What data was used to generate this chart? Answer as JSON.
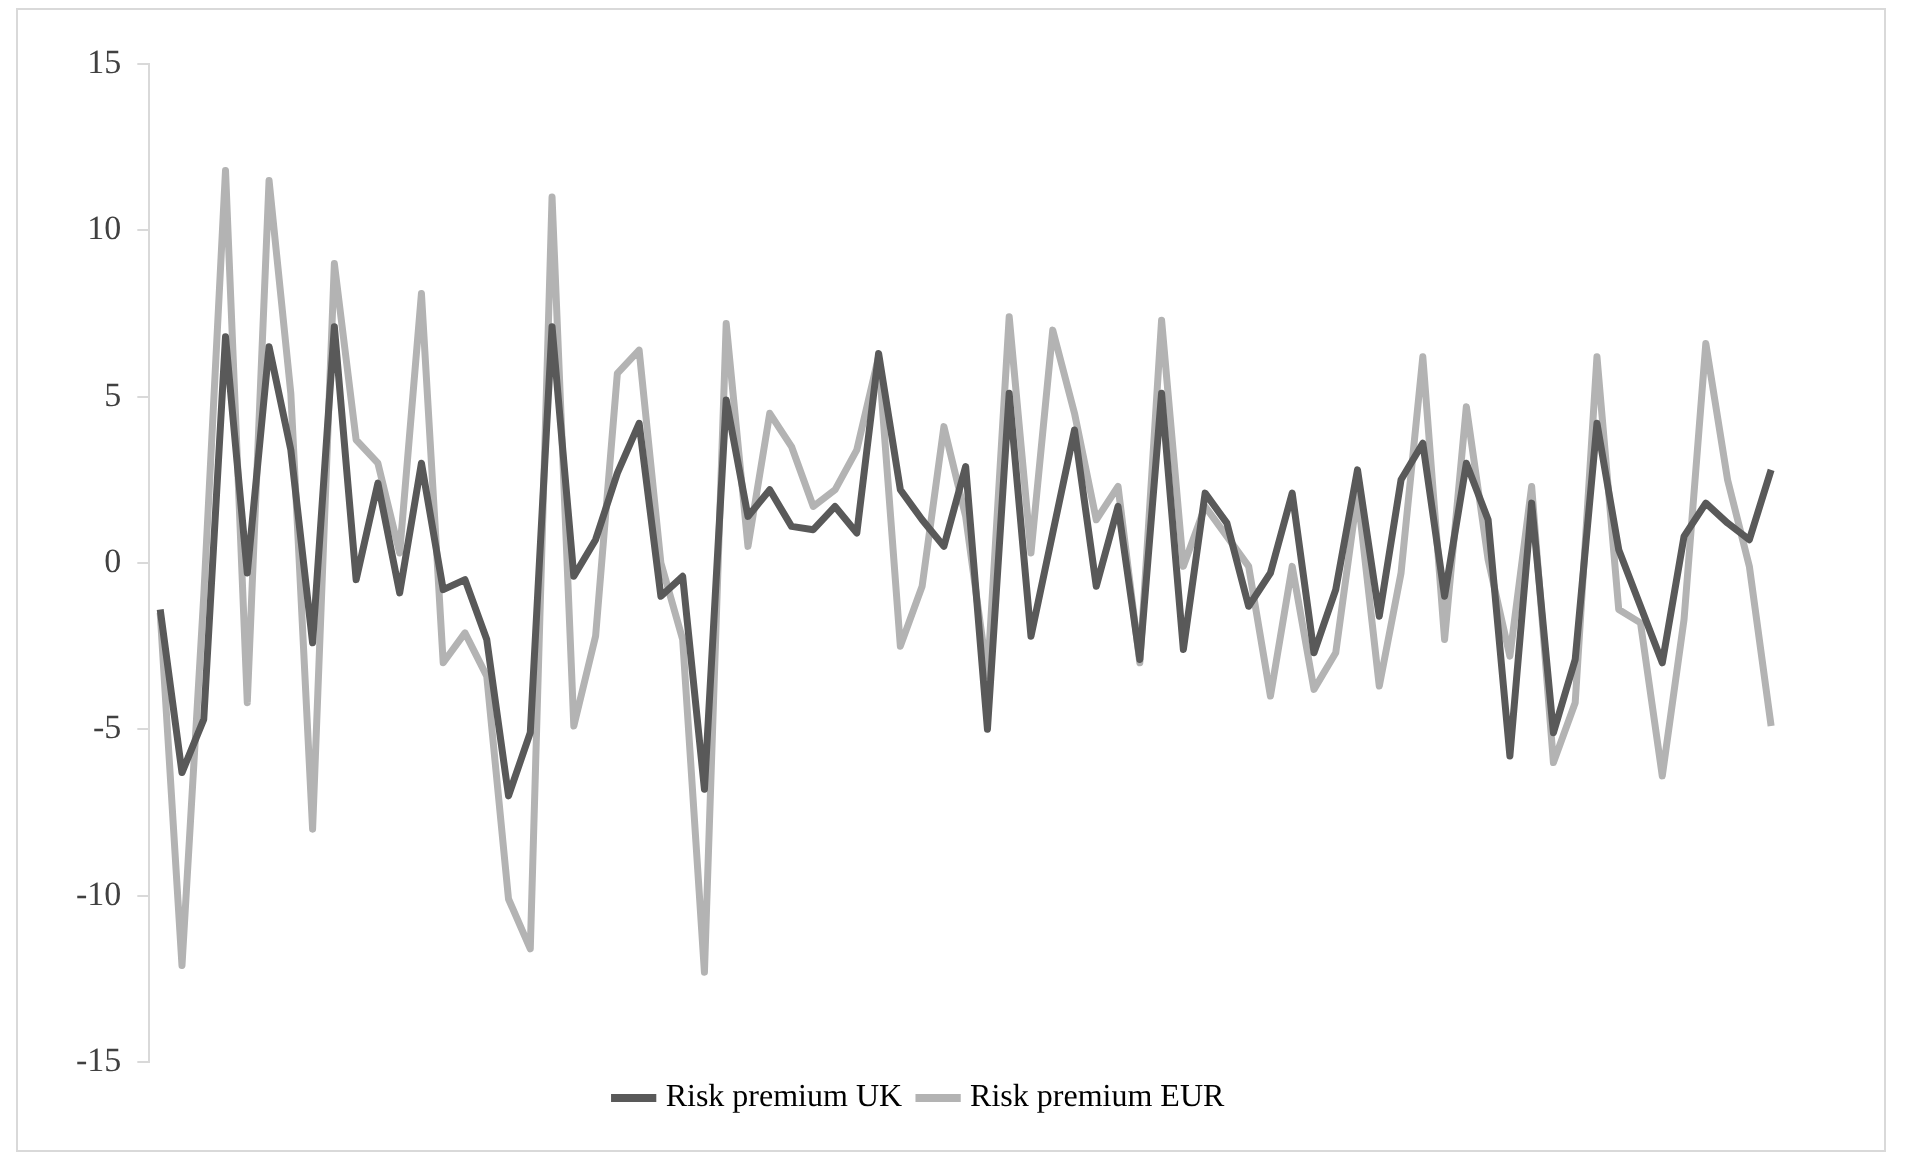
{
  "chart_data": {
    "type": "line",
    "categories": [
      null,
      null,
      null,
      null,
      null,
      null,
      null,
      null,
      null,
      null,
      null,
      null,
      null,
      null,
      null,
      null,
      null,
      null,
      null,
      null,
      null,
      null,
      null,
      null,
      null,
      null,
      null,
      null,
      null,
      null,
      null,
      null,
      null,
      null,
      null,
      null,
      null,
      null,
      null,
      null,
      null,
      null,
      null,
      null,
      null,
      null,
      null,
      null,
      null,
      null,
      null,
      null,
      null,
      null,
      null,
      null,
      null,
      null,
      null,
      null,
      null,
      null,
      null,
      null,
      null,
      null,
      null,
      null,
      null,
      null,
      null,
      null,
      null,
      null,
      null
    ],
    "series": [
      {
        "name": "Risk premium UK",
        "color": "#595959",
        "values": [
          -1.4,
          -6.3,
          -4.7,
          6.8,
          -0.3,
          6.5,
          3.4,
          -2.4,
          7.1,
          -0.5,
          2.4,
          -0.9,
          3.0,
          -0.8,
          -0.5,
          -2.3,
          -7.0,
          -5.1,
          7.1,
          -0.4,
          0.7,
          2.7,
          4.2,
          -1.0,
          -0.4,
          -6.8,
          4.9,
          1.4,
          2.2,
          1.1,
          1.0,
          1.7,
          0.9,
          6.3,
          2.2,
          1.3,
          0.5,
          2.9,
          -5.0,
          5.1,
          -2.2,
          0.9,
          4.0,
          -0.7,
          1.7,
          -2.9,
          5.1,
          -2.6,
          2.1,
          1.2,
          -1.3,
          -0.3,
          2.1,
          -2.7,
          -0.8,
          2.8,
          -1.6,
          2.5,
          3.6,
          -1.0,
          3.0,
          1.3,
          -5.8,
          1.8,
          -5.1,
          -2.9,
          4.2,
          0.4,
          -1.3,
          -3.0,
          0.8,
          1.8,
          1.2,
          0.7,
          2.8
        ]
      },
      {
        "name": "Risk premium EUR",
        "color": "#b3b3b3",
        "values": [
          -1.5,
          -12.1,
          -1.0,
          11.8,
          -4.2,
          11.5,
          5.1,
          -8.0,
          9.0,
          3.7,
          3.0,
          0.3,
          8.1,
          -3.0,
          -2.1,
          -3.4,
          -10.1,
          -11.6,
          11.0,
          -4.9,
          -2.2,
          5.7,
          6.4,
          0.0,
          -2.3,
          -12.3,
          7.2,
          0.5,
          4.5,
          3.5,
          1.7,
          2.2,
          3.4,
          6.2,
          -2.5,
          -0.7,
          4.1,
          1.4,
          -3.4,
          7.4,
          0.3,
          7.0,
          4.5,
          1.3,
          2.3,
          -3.0,
          7.3,
          -0.1,
          1.7,
          0.8,
          -0.1,
          -4.0,
          -0.1,
          -3.8,
          -2.7,
          2.1,
          -3.7,
          -0.3,
          6.2,
          -2.3,
          4.7,
          0.1,
          -2.8,
          2.3,
          -6.0,
          -4.2,
          6.2,
          -1.4,
          -1.8,
          -6.4,
          -1.7,
          6.6,
          2.5,
          -0.1,
          -4.9
        ]
      }
    ],
    "ylim": [
      -15,
      15
    ],
    "yticks": [
      -15,
      -10,
      -5,
      0,
      5,
      10,
      15
    ],
    "grid": false,
    "legend": "bottom",
    "marker": "none",
    "line_style": "solid"
  }
}
